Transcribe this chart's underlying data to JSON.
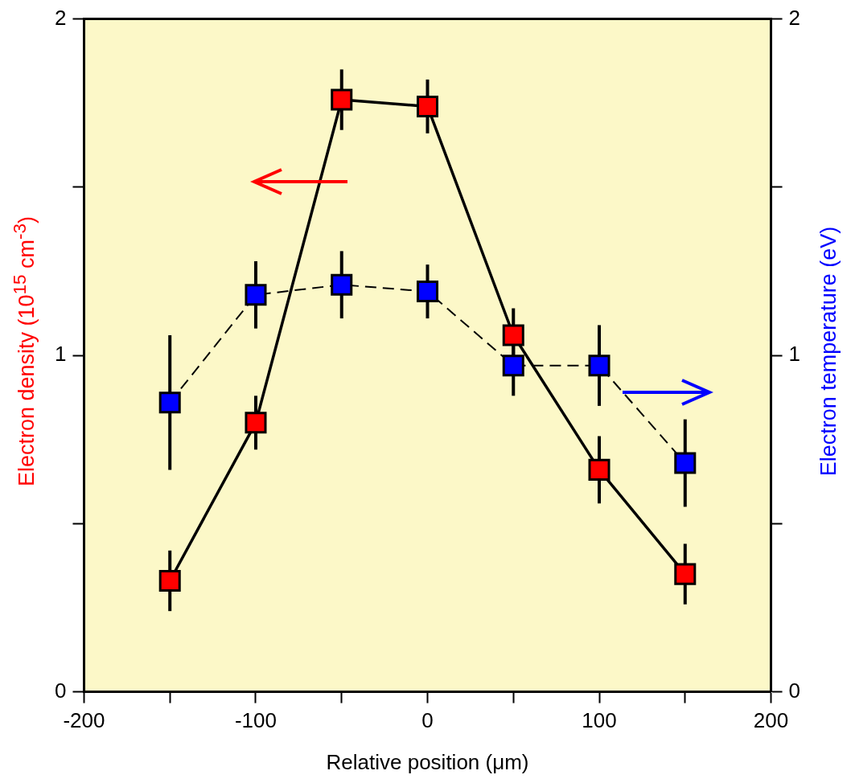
{
  "chart_data": {
    "type": "line",
    "xlabel": "Relative position (μm)",
    "ylabel": "Electron density (10$^{15}$ cm$^{-3}$)",
    "y2label": "Electron temperature (eV)",
    "x": [
      -150,
      -100,
      -50,
      0,
      50,
      100,
      150
    ],
    "series": [
      {
        "color": "#ff0000",
        "axis": "y",
        "line_style": "solid",
        "values": [
          0.33,
          0.8,
          1.76,
          1.74,
          1.06,
          0.66,
          0.35
        ],
        "errors": [
          0.09,
          0.08,
          0.09,
          0.08,
          0.08,
          0.1,
          0.09
        ]
      },
      {
        "color": "#0000ff",
        "axis": "y2",
        "line_style": "dashed",
        "values": [
          0.86,
          1.18,
          1.21,
          1.19,
          0.97,
          0.97,
          0.68
        ],
        "errors": [
          0.2,
          0.1,
          0.1,
          0.08,
          0.09,
          0.12,
          0.13
        ]
      }
    ],
    "xlim": [
      -200,
      200
    ],
    "xticks": [
      -200,
      {
        "value": -150,
        "label": null
      },
      -100,
      {
        "value": -50,
        "label": null
      },
      0,
      {
        "value": 50,
        "label": null
      },
      100,
      {
        "value": 150,
        "label": null
      },
      200
    ],
    "ylim": [
      0,
      2
    ],
    "yticks": [
      0,
      {
        "value": 0.5,
        "label": null
      },
      1,
      {
        "value": 1.5,
        "label": null
      },
      2
    ],
    "y2lim": [
      0,
      2
    ],
    "y2ticks": [
      0,
      {
        "value": 0.5,
        "label": null
      },
      1,
      {
        "value": 1.5,
        "label": null
      },
      2
    ],
    "grid": false,
    "legend": false,
    "marker": "square"
  }
}
